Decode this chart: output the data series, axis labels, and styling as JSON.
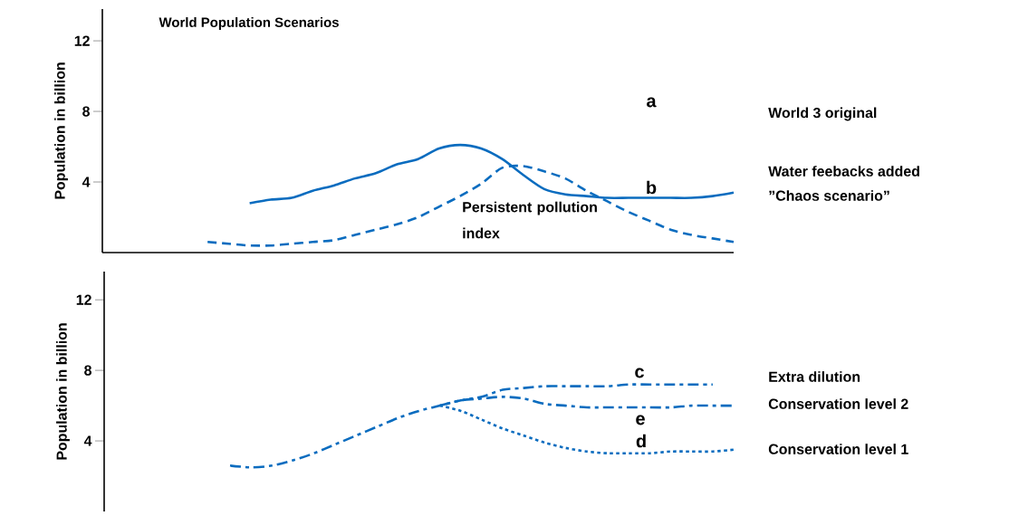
{
  "chart_data": [
    {
      "type": "line",
      "title": "World Population Scenarios",
      "ylabel": "Population in billion",
      "categories": [
        null,
        null,
        null,
        null,
        null,
        null,
        null,
        null,
        null,
        null,
        null,
        null,
        null,
        null,
        null,
        null,
        null,
        null,
        null,
        null,
        null,
        null,
        null,
        null,
        null,
        null,
        null,
        null,
        null,
        null,
        null
      ],
      "series": [
        {
          "color": "#0a6cbf",
          "line_style": "solid",
          "values": [
            null,
            null,
            null,
            null,
            null,
            null,
            null,
            2.8,
            3.0,
            3.1,
            3.5,
            3.8,
            4.2,
            4.5,
            5.0,
            5.3,
            5.9,
            6.1,
            5.9,
            5.3,
            4.4,
            3.6,
            3.3,
            3.2,
            3.1,
            3.1,
            3.1,
            3.1,
            3.1,
            3.2,
            3.4
          ]
        },
        {
          "color": "#0a6cbf",
          "line_style": "dashed",
          "values": [
            null,
            null,
            null,
            null,
            null,
            0.6,
            0.5,
            0.4,
            0.4,
            0.5,
            0.6,
            0.7,
            1.0,
            1.3,
            1.6,
            2.0,
            2.6,
            3.2,
            3.9,
            4.8,
            4.9,
            4.6,
            4.2,
            3.5,
            2.9,
            2.3,
            1.8,
            1.3,
            1.0,
            0.8,
            0.6
          ]
        }
      ],
      "ylim": [
        0,
        13.8
      ],
      "yticks": [
        4,
        8,
        12
      ],
      "annotations": [
        "a",
        "World 3 original",
        "b",
        "Water feebacks added",
        "”Chaos scenario”",
        "Persistent pollution index"
      ]
    },
    {
      "type": "line",
      "ylabel": "Population in billion",
      "categories": [
        null,
        null,
        null,
        null,
        null,
        null,
        null,
        null,
        null,
        null,
        null,
        null,
        null,
        null,
        null,
        null,
        null,
        null,
        null,
        null,
        null,
        null,
        null,
        null,
        null,
        null,
        null,
        null,
        null,
        null,
        null
      ],
      "series": [
        {
          "color": "#0a6cbf",
          "line_style": "dashdot",
          "values": [
            null,
            null,
            null,
            null,
            null,
            null,
            2.6,
            2.5,
            2.6,
            2.9,
            3.3,
            3.8,
            4.3,
            4.8,
            5.3,
            5.7,
            6.0,
            6.3,
            6.5,
            6.9,
            7.0,
            7.1,
            7.1,
            7.1,
            7.1,
            7.2,
            7.2,
            7.2,
            7.2,
            7.2,
            null
          ]
        },
        {
          "color": "#0a6cbf",
          "line_style": "dashdot",
          "values": [
            null,
            null,
            null,
            null,
            null,
            null,
            null,
            null,
            null,
            null,
            null,
            null,
            null,
            null,
            null,
            null,
            6.0,
            6.3,
            6.4,
            6.5,
            6.4,
            6.1,
            6.0,
            5.9,
            5.9,
            5.9,
            5.9,
            5.9,
            6.0,
            6.0,
            6.0
          ]
        },
        {
          "color": "#0a6cbf",
          "line_style": "dotted",
          "values": [
            null,
            null,
            null,
            null,
            null,
            null,
            null,
            null,
            null,
            null,
            null,
            null,
            null,
            null,
            null,
            null,
            6.0,
            5.7,
            5.2,
            4.7,
            4.3,
            3.9,
            3.6,
            3.4,
            3.3,
            3.3,
            3.3,
            3.4,
            3.4,
            3.4,
            3.5
          ]
        }
      ],
      "ylim": [
        0,
        13.6
      ],
      "yticks": [
        4,
        8,
        12
      ],
      "annotations": [
        "c",
        "Extra dilution",
        "e",
        "Conservation level 2",
        "d",
        "Conservation level 1"
      ]
    }
  ]
}
